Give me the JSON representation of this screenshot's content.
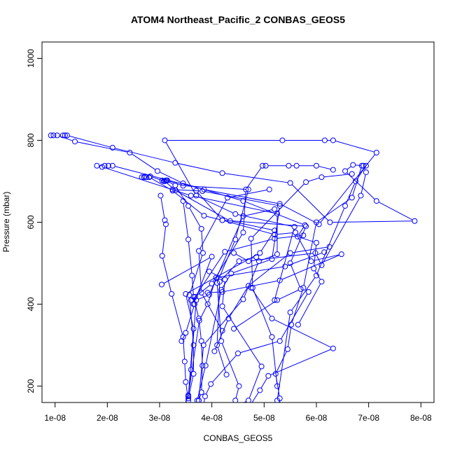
{
  "chart_data": {
    "type": "scatter",
    "title": "ATOM4 Northeast_Pacific_2 CONBAS_GEOS5",
    "xlabel": "CONBAS_GEOS5",
    "ylabel": "Pressure (mbar)",
    "xlim": [
      7.5e-09,
      8.25e-08
    ],
    "ylim": [
      1040,
      160
    ],
    "x_reversed": false,
    "y_reversed": true,
    "grid": false,
    "legend": "none",
    "xticks": [
      {
        "value": 1e-08,
        "label": "1e-08"
      },
      {
        "value": 2e-08,
        "label": "2e-08"
      },
      {
        "value": 3e-08,
        "label": "3e-08"
      },
      {
        "value": 4e-08,
        "label": "4e-08"
      },
      {
        "value": 5e-08,
        "label": "5e-08"
      },
      {
        "value": 6e-08,
        "label": "6e-08"
      },
      {
        "value": 7e-08,
        "label": "7e-08"
      },
      {
        "value": 8e-08,
        "label": "8e-08"
      }
    ],
    "yticks": [
      {
        "value": 200,
        "label": "200"
      },
      {
        "value": 400,
        "label": "400"
      },
      {
        "value": 600,
        "label": "600"
      },
      {
        "value": 800,
        "label": "800"
      },
      {
        "value": 1000,
        "label": "1000"
      }
    ],
    "line_color": "#0000ff",
    "marker": "open-circle",
    "series": [
      {
        "points": [
          [
            9.2e-09,
            812
          ],
          [
            9.7e-09,
            812
          ],
          [
            1.04e-08,
            812
          ],
          [
            1.38e-08,
            797
          ],
          [
            2.43e-08,
            770
          ],
          [
            2.96e-08,
            725
          ],
          [
            3.45e-08,
            695
          ],
          [
            4.6e-08,
            652
          ],
          [
            5.78e-08,
            593
          ],
          [
            5.64e-08,
            565
          ],
          [
            6e-08,
            550
          ],
          [
            5.95e-08,
            487
          ],
          [
            6.1e-08,
            455
          ],
          [
            5.65e-08,
            350
          ]
        ]
      },
      {
        "points": [
          [
            1.15e-08,
            812
          ],
          [
            1.19e-08,
            812
          ],
          [
            1.23e-08,
            812
          ],
          [
            2.1e-08,
            782
          ],
          [
            3.3e-08,
            745
          ],
          [
            4.2e-08,
            720
          ],
          [
            5.5e-08,
            696
          ],
          [
            6.26e-08,
            600
          ],
          [
            7.88e-08,
            603
          ],
          [
            7.15e-08,
            652
          ],
          [
            6.55e-08,
            725
          ],
          [
            6.7e-08,
            740
          ],
          [
            6.9e-08,
            738
          ],
          [
            6.95e-08,
            722
          ],
          [
            6.85e-08,
            665
          ],
          [
            6.1e-08,
            495
          ],
          [
            5.98e-08,
            525
          ],
          [
            4.7e-08,
            505
          ],
          [
            4.42e-08,
            525
          ]
        ]
      },
      {
        "points": [
          [
            1.8e-08,
            738
          ],
          [
            1.95e-08,
            738
          ],
          [
            2.02e-08,
            738
          ],
          [
            2.1e-08,
            738
          ],
          [
            3.85e-08,
            680
          ],
          [
            5.3e-08,
            645
          ],
          [
            6.05e-08,
            595
          ],
          [
            7.15e-08,
            770
          ],
          [
            6.32e-08,
            800
          ],
          [
            6.16e-08,
            800
          ],
          [
            5.35e-08,
            800
          ],
          [
            3.1e-08,
            800
          ],
          [
            3.7e-08,
            665
          ],
          [
            4.45e-08,
            620
          ],
          [
            5.58e-08,
            589
          ],
          [
            5.2e-08,
            410
          ]
        ]
      },
      {
        "points": [
          [
            1.9e-08,
            735
          ],
          [
            3.6e-08,
            665
          ],
          [
            5.25e-08,
            621
          ],
          [
            5.25e-08,
            522
          ],
          [
            4.9e-08,
            505
          ],
          [
            4.6e-08,
            412
          ],
          [
            3.84e-08,
            300
          ],
          [
            3.75e-08,
            165
          ]
        ]
      },
      {
        "points": [
          [
            2.66e-08,
            710
          ],
          [
            2.7e-08,
            710
          ],
          [
            2.75e-08,
            710
          ],
          [
            2.8e-08,
            710
          ],
          [
            3.25e-08,
            677
          ],
          [
            3.85e-08,
            616
          ],
          [
            4.2e-08,
            605
          ],
          [
            5.8e-08,
            590
          ],
          [
            5.5e-08,
            500
          ],
          [
            5.7e-08,
            437
          ],
          [
            5.25e-08,
            410
          ],
          [
            4.42e-08,
            340
          ]
        ]
      },
      {
        "points": [
          [
            2.72e-08,
            712
          ],
          [
            2.82e-08,
            712
          ],
          [
            3.1e-08,
            700
          ],
          [
            3.3e-08,
            678
          ],
          [
            4.35e-08,
            603
          ],
          [
            5.2e-08,
            580
          ],
          [
            4.92e-08,
            525
          ],
          [
            3.5e-08,
            425
          ],
          [
            3.65e-08,
            340
          ],
          [
            3.55e-08,
            175
          ]
        ]
      },
      {
        "points": [
          [
            3.05e-08,
            702
          ],
          [
            3.12e-08,
            702
          ],
          [
            3.15e-08,
            702
          ],
          [
            3.45e-08,
            689
          ],
          [
            4.7e-08,
            680
          ],
          [
            4.45e-08,
            558
          ],
          [
            4.1e-08,
            452
          ],
          [
            4.18e-08,
            310
          ],
          [
            4.52e-08,
            200
          ],
          [
            4.45e-08,
            165
          ]
        ]
      },
      {
        "points": [
          [
            3.08e-08,
            700
          ],
          [
            3.13e-08,
            702
          ],
          [
            3.3e-08,
            690
          ],
          [
            3.55e-08,
            640
          ],
          [
            3.8e-08,
            584
          ],
          [
            3.83e-08,
            525
          ],
          [
            3.57e-08,
            422
          ],
          [
            3.65e-08,
            300
          ],
          [
            3.65e-08,
            230
          ],
          [
            3.55e-08,
            170
          ]
        ]
      },
      {
        "points": [
          [
            3.25e-08,
            680
          ],
          [
            3.82e-08,
            676
          ],
          [
            5.3e-08,
            640
          ],
          [
            5.15e-08,
            510
          ],
          [
            4.37e-08,
            475
          ],
          [
            4.18e-08,
            435
          ],
          [
            3.88e-08,
            250
          ],
          [
            3.72e-08,
            165
          ]
        ]
      },
      {
        "points": [
          [
            3.02e-08,
            665
          ],
          [
            3.1e-08,
            605
          ],
          [
            3.12e-08,
            595
          ],
          [
            3.05e-08,
            518
          ],
          [
            3.23e-08,
            425
          ],
          [
            3.45e-08,
            320
          ],
          [
            3.48e-08,
            260
          ],
          [
            3.5e-08,
            210
          ],
          [
            3.55e-08,
            165
          ]
        ]
      },
      {
        "points": [
          [
            3.45e-08,
            652
          ],
          [
            3.55e-08,
            558
          ],
          [
            3.62e-08,
            470
          ],
          [
            3.65e-08,
            418
          ],
          [
            3.75e-08,
            365
          ],
          [
            3.8e-08,
            310
          ],
          [
            3.82e-08,
            250
          ],
          [
            3.8e-08,
            185
          ],
          [
            3.75e-08,
            165
          ]
        ]
      },
      {
        "points": [
          [
            3.7e-08,
            677
          ],
          [
            4.2e-08,
            605
          ],
          [
            5.2e-08,
            570
          ],
          [
            5.6e-08,
            575
          ],
          [
            5.9e-08,
            505
          ],
          [
            6.48e-08,
            522
          ],
          [
            5.3e-08,
            458
          ],
          [
            4.2e-08,
            430
          ],
          [
            3.92e-08,
            428
          ]
        ]
      },
      {
        "points": [
          [
            3.04e-08,
            448
          ],
          [
            4e-08,
            516
          ],
          [
            3.65e-08,
            400
          ],
          [
            3.6e-08,
            410
          ],
          [
            4e-08,
            450
          ],
          [
            4.6e-08,
            575
          ],
          [
            4.65e-08,
            680
          ],
          [
            4.97e-08,
            738
          ],
          [
            5.03e-08,
            738
          ],
          [
            5.47e-08,
            738
          ],
          [
            5.62e-08,
            738
          ],
          [
            6e-08,
            738
          ],
          [
            6.32e-08,
            728
          ]
        ]
      },
      {
        "points": [
          [
            4.2e-08,
            335
          ],
          [
            3.8e-08,
            428
          ],
          [
            3.75e-08,
            530
          ],
          [
            4.3e-08,
            660
          ],
          [
            5.1e-08,
            680
          ]
        ]
      },
      {
        "points": [
          [
            3.42e-08,
            310
          ],
          [
            3.5e-08,
            330
          ],
          [
            3.67e-08,
            400
          ],
          [
            3.68e-08,
            418
          ],
          [
            4.25e-08,
            528
          ],
          [
            5.2e-08,
            560
          ],
          [
            5.75e-08,
            568
          ]
        ]
      },
      {
        "points": [
          [
            4.28e-08,
            228
          ],
          [
            4.1e-08,
            300
          ],
          [
            4.15e-08,
            455
          ],
          [
            4.52e-08,
            505
          ],
          [
            4.85e-08,
            515
          ]
        ]
      },
      {
        "points": [
          [
            3.55e-08,
            175
          ],
          [
            3.6e-08,
            240
          ],
          [
            3.7e-08,
            410
          ],
          [
            3.95e-08,
            423
          ],
          [
            4.6e-08,
            615
          ],
          [
            5.2e-08,
            632
          ]
        ]
      },
      {
        "points": [
          [
            5.25e-08,
            200
          ],
          [
            5.15e-08,
            320
          ],
          [
            4.78e-08,
            440
          ],
          [
            4.75e-08,
            560
          ],
          [
            5.8e-08,
            698
          ],
          [
            6.1e-08,
            710
          ],
          [
            6.68e-08,
            718
          ]
        ]
      },
      {
        "points": [
          [
            3.45e-08,
            145
          ],
          [
            3.55e-08,
            178
          ],
          [
            3.76e-08,
            360
          ],
          [
            3.92e-08,
            400
          ],
          [
            4.08e-08,
            465
          ],
          [
            5.4e-08,
            492
          ],
          [
            6.15e-08,
            527
          ]
        ]
      },
      {
        "points": [
          [
            4.05e-08,
            285
          ],
          [
            4.32e-08,
            365
          ],
          [
            4.7e-08,
            445
          ],
          [
            5.5e-08,
            525
          ],
          [
            6.25e-08,
            540
          ]
        ]
      },
      {
        "points": [
          [
            4.62e-08,
            130
          ],
          [
            4.92e-08,
            190
          ],
          [
            5.08e-08,
            225
          ],
          [
            6.32e-08,
            292
          ],
          [
            5.15e-08,
            365
          ],
          [
            4.75e-08,
            440
          ]
        ]
      },
      {
        "points": [
          [
            5.3e-08,
            130
          ],
          [
            5.3e-08,
            170
          ],
          [
            5.22e-08,
            230
          ],
          [
            5.45e-08,
            290
          ],
          [
            5.52e-08,
            350
          ],
          [
            5.75e-08,
            440
          ],
          [
            6e-08,
            600
          ],
          [
            6.68e-08,
            660
          ],
          [
            6.87e-08,
            738
          ]
        ]
      },
      {
        "points": [
          [
            5.22e-08,
            120
          ],
          [
            5.25e-08,
            165
          ],
          [
            5.5e-08,
            380
          ],
          [
            6e-08,
            470
          ],
          [
            6.55e-08,
            640
          ],
          [
            6.75e-08,
            700
          ],
          [
            6.95e-08,
            738
          ]
        ]
      },
      {
        "points": [
          [
            4.1e-08,
            130
          ],
          [
            4.7e-08,
            165
          ],
          [
            4.95e-08,
            248
          ],
          [
            4.2e-08,
            395
          ],
          [
            4.25e-08,
            460
          ],
          [
            3.95e-08,
            480
          ]
        ]
      },
      {
        "points": [
          [
            3.8e-08,
            122
          ],
          [
            3.87e-08,
            175
          ],
          [
            3.98e-08,
            205
          ],
          [
            4.5e-08,
            280
          ],
          [
            5.3e-08,
            310
          ],
          [
            5.85e-08,
            430
          ]
        ]
      }
    ]
  }
}
